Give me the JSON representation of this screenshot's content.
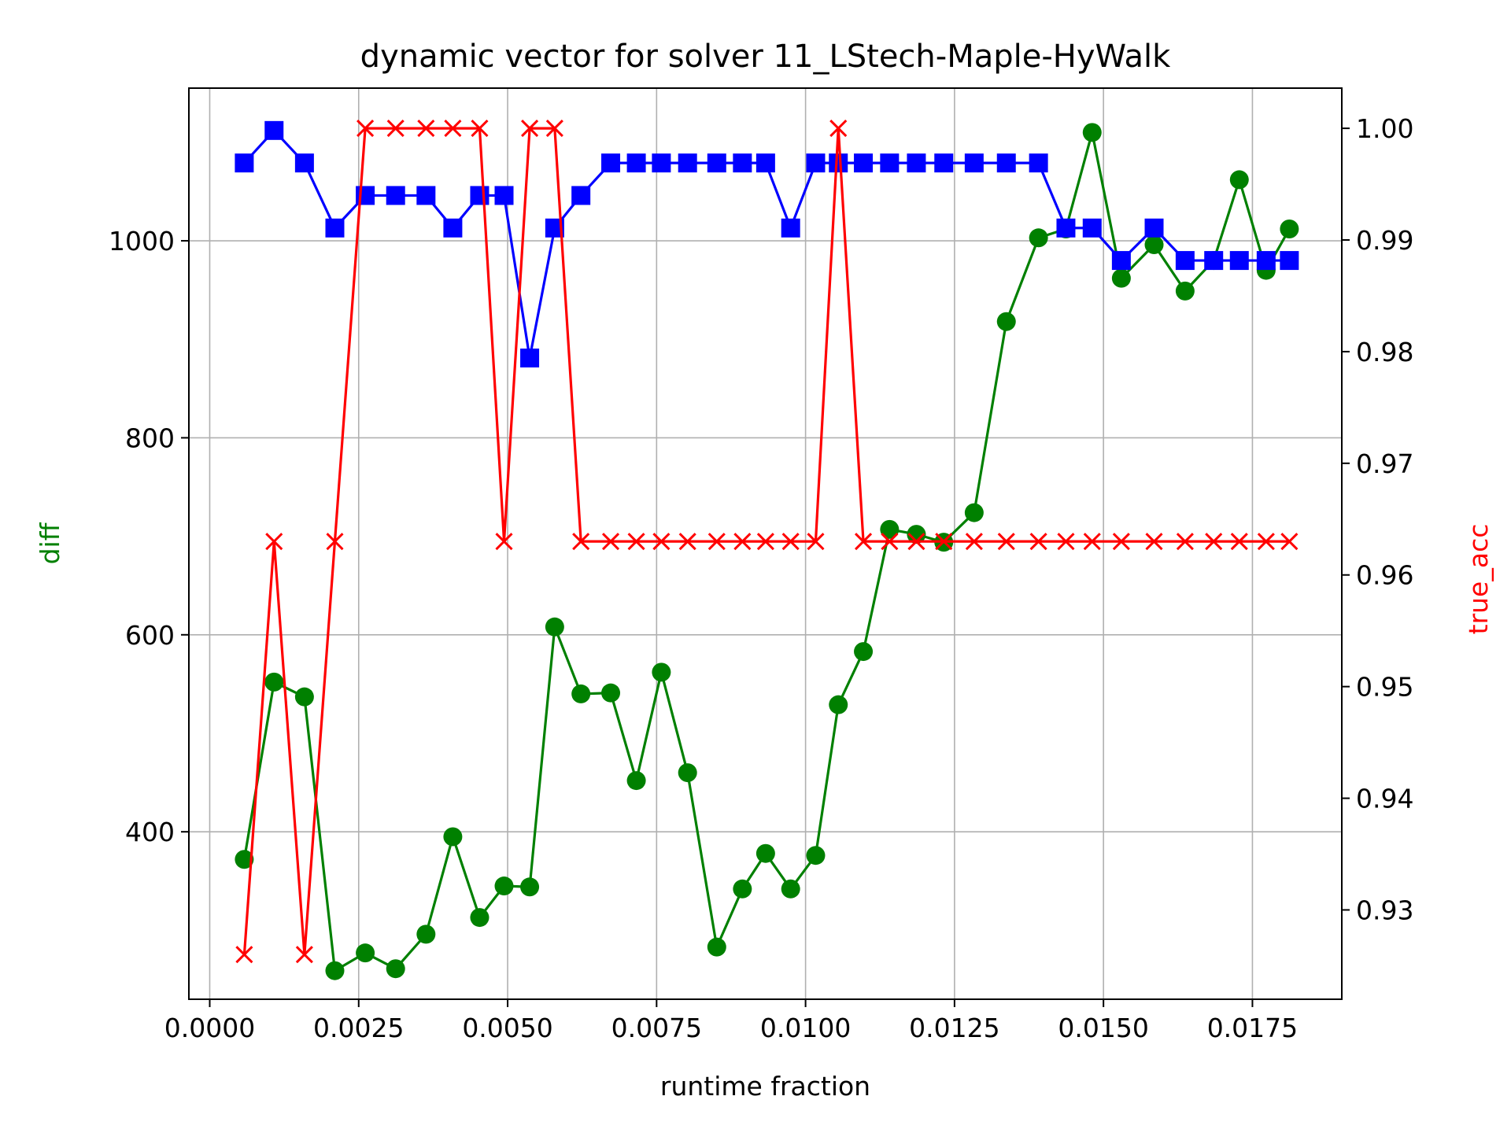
{
  "chart_data": {
    "type": "line",
    "title": "dynamic vector for solver 11_LStech-Maple-HyWalk",
    "xlabel": "runtime fraction",
    "ylabel_left": "diff",
    "ylabel_right": "true_acc",
    "xlim": [
      -0.00035,
      0.019
    ],
    "ylim_left": [
      230,
      1155
    ],
    "ylim_right": [
      0.922,
      1.0036
    ],
    "x_ticks": [
      0.0,
      0.0025,
      0.005,
      0.0075,
      0.01,
      0.0125,
      0.015,
      0.0175
    ],
    "x_tick_labels": [
      "0.0000",
      "0.0025",
      "0.0050",
      "0.0075",
      "0.0100",
      "0.0125",
      "0.0150",
      "0.0175"
    ],
    "y_left_ticks": [
      400,
      600,
      800,
      1000
    ],
    "y_left_tick_labels": [
      "400",
      "600",
      "800",
      "1000"
    ],
    "y_right_ticks": [
      0.93,
      0.94,
      0.95,
      0.96,
      0.97,
      0.98,
      0.99,
      1.0
    ],
    "y_right_tick_labels": [
      "0.93",
      "0.94",
      "0.95",
      "0.96",
      "0.97",
      "0.98",
      "0.99",
      "1.00"
    ],
    "grid": true,
    "x": [
      0.00058,
      0.00108,
      0.00159,
      0.0021,
      0.00261,
      0.00312,
      0.00363,
      0.00408,
      0.00453,
      0.00494,
      0.00537,
      0.00579,
      0.00623,
      0.00673,
      0.00716,
      0.00758,
      0.00802,
      0.00851,
      0.00894,
      0.00933,
      0.00975,
      0.01017,
      0.01055,
      0.01097,
      0.01141,
      0.01186,
      0.01232,
      0.01283,
      0.01337,
      0.01391,
      0.01437,
      0.01481,
      0.0153,
      0.01585,
      0.01637,
      0.01685,
      0.01728,
      0.01773,
      0.01812
    ],
    "series": [
      {
        "axis": "left",
        "color": "#008000",
        "marker": "circle",
        "values": [
          372,
          552,
          537,
          259,
          277,
          261,
          296,
          395,
          313,
          345,
          344,
          608,
          540,
          541,
          452,
          562,
          460,
          283,
          342,
          378,
          342,
          376,
          529,
          583,
          707,
          702,
          694,
          724,
          918,
          1003,
          1012,
          1110,
          962,
          996,
          949,
          980,
          1062,
          970,
          1012
        ]
      },
      {
        "axis": "left",
        "color": "#0000ff",
        "marker": "square",
        "values": [
          1079,
          1112,
          1079,
          1013,
          1046,
          1046,
          1046,
          1013,
          1046,
          1046,
          881,
          1013,
          1046,
          1079,
          1079,
          1079,
          1079,
          1079,
          1079,
          1079,
          1013,
          1079,
          1079,
          1079,
          1079,
          1079,
          1079,
          1079,
          1079,
          1079,
          1013,
          1013,
          980,
          1013,
          980,
          980,
          980,
          980,
          980
        ]
      },
      {
        "axis": "right",
        "color": "#ff0000",
        "marker": "x",
        "values": [
          0.926,
          0.963,
          0.926,
          0.963,
          1.0,
          1.0,
          1.0,
          1.0,
          1.0,
          0.963,
          1.0,
          1.0,
          0.963,
          0.963,
          0.963,
          0.963,
          0.963,
          0.963,
          0.963,
          0.963,
          0.963,
          0.963,
          1.0,
          0.963,
          0.963,
          0.963,
          0.963,
          0.963,
          0.963,
          0.963,
          0.963,
          0.963,
          0.963,
          0.963,
          0.963,
          0.963,
          0.963,
          0.963,
          0.963
        ]
      }
    ]
  }
}
